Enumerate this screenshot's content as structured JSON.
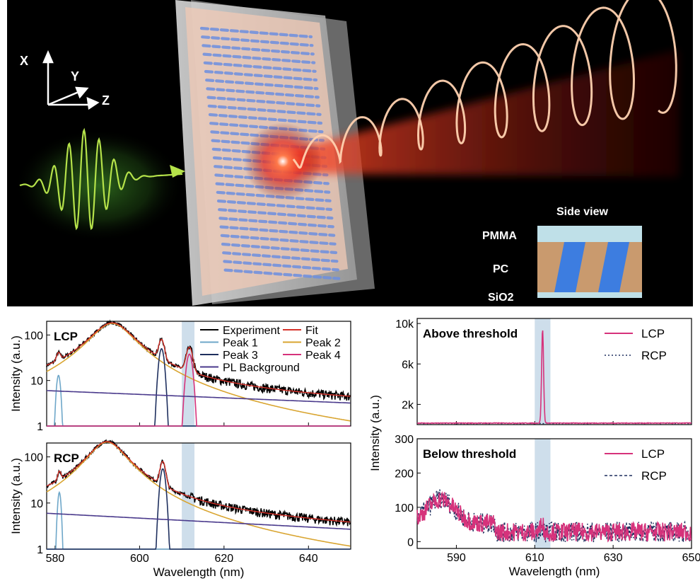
{
  "illustration": {
    "axes": {
      "x": "X",
      "y": "Y",
      "z": "Z"
    },
    "side_view": {
      "title": "Side view",
      "layers": [
        "PMMA",
        "PC",
        "SiO2"
      ]
    },
    "colors": {
      "background": "#000000",
      "pulse": "#9ad63a",
      "beam": "#ff3a1e",
      "spiral": "#ffd2b0",
      "nanorods": "#6d8fe0",
      "pc_layer": "#c99a6e",
      "pmma_layer": "#bfe0e8"
    }
  },
  "chart_data": [
    {
      "type": "line",
      "panel": "LCP",
      "yscale": "log",
      "xlim": [
        578,
        650
      ],
      "ylim": [
        1,
        200
      ],
      "xticks": [
        580,
        600,
        620,
        640
      ],
      "yticks": [
        1,
        10,
        100
      ],
      "ytick_labels": [
        "1",
        "10",
        "100"
      ],
      "xlabel": "",
      "ylabel": "Intensity (a.u.)",
      "highlight_band": [
        610,
        613
      ],
      "legend": [
        "Experiment",
        "Fit",
        "Peak 1",
        "Peak 2",
        "Peak 3",
        "Peak 4",
        "PL Background"
      ],
      "series": [
        {
          "name": "Experiment",
          "color": "#000000"
        },
        {
          "name": "Fit",
          "color": "#d6322a"
        },
        {
          "name": "Peak 1",
          "color": "#6ea7c9"
        },
        {
          "name": "Peak 2",
          "color": "#d9a531"
        },
        {
          "name": "Peak 3",
          "color": "#1e2f5e"
        },
        {
          "name": "Peak 4",
          "color": "#d6327b"
        },
        {
          "name": "PL Background",
          "color": "#4a3a8c"
        }
      ],
      "peaks": {
        "peak1": {
          "center": 580.8,
          "height": 13,
          "width": 0.6
        },
        "peak2": {
          "center": 593.5,
          "height": 180,
          "width": 4.8
        },
        "peak3": {
          "center": 605.2,
          "height": 50,
          "width": 0.8
        },
        "peak4": {
          "center": 611.8,
          "height": 38,
          "width": 0.9
        },
        "background": {
          "x": [
            578,
            650
          ],
          "y": [
            6,
            3.2
          ]
        }
      }
    },
    {
      "type": "line",
      "panel": "RCP",
      "yscale": "log",
      "xlim": [
        578,
        650
      ],
      "ylim": [
        1,
        200
      ],
      "xticks": [
        580,
        600,
        620,
        640
      ],
      "yticks": [
        1,
        10,
        100
      ],
      "ytick_labels": [
        "1",
        "10",
        "100"
      ],
      "xlabel": "Wavelength (nm)",
      "ylabel": "Intensity (a.u.)",
      "highlight_band": [
        610,
        613
      ],
      "peaks": {
        "peak1": {
          "center": 581,
          "height": 17,
          "width": 0.5
        },
        "peak2": {
          "center": 592.3,
          "height": 210,
          "width": 4.3
        },
        "peak3": {
          "center": 605.5,
          "height": 55,
          "width": 0.8
        },
        "background": {
          "x": [
            578,
            650
          ],
          "y": [
            6,
            2.7
          ]
        }
      }
    },
    {
      "type": "line",
      "panel": "Above threshold",
      "xlim": [
        580,
        650
      ],
      "ylim": [
        0,
        10500
      ],
      "xticks": [
        590,
        610,
        630,
        650
      ],
      "yticks": [
        2000,
        6000,
        10000
      ],
      "ytick_labels": [
        "2k",
        "6k",
        "10k"
      ],
      "xlabel": "",
      "ylabel": "",
      "highlight_band": [
        610,
        614
      ],
      "legend": [
        "LCP",
        "RCP"
      ],
      "series": [
        {
          "name": "LCP",
          "color": "#d6327b",
          "peak_center": 612,
          "peak_height": 9300,
          "baseline": 150
        },
        {
          "name": "RCP",
          "color": "#1e2f5e",
          "baseline": 120
        }
      ]
    },
    {
      "type": "line",
      "panel": "Below threshold",
      "xlim": [
        580,
        650
      ],
      "ylim": [
        -20,
        300
      ],
      "xticks": [
        590,
        610,
        630,
        650
      ],
      "yticks": [
        0,
        100,
        200,
        300
      ],
      "ytick_labels": [
        "0",
        "100",
        "200",
        "300"
      ],
      "xlabel": "Wavelength (nm)",
      "ylabel": "Intensity (a.u.)",
      "highlight_band": [
        610,
        614
      ],
      "legend": [
        "LCP",
        "RCP"
      ],
      "series": [
        {
          "name": "LCP",
          "color": "#d6327b"
        },
        {
          "name": "RCP",
          "color": "#1e2f5e"
        }
      ]
    }
  ]
}
